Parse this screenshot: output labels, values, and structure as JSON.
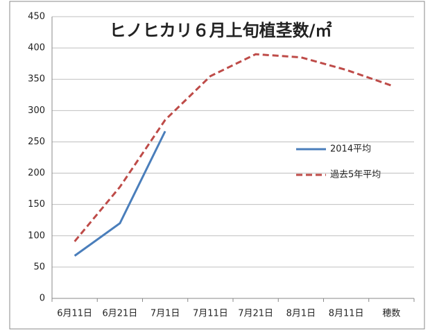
{
  "chart_data": {
    "type": "line",
    "title": "ヒノヒカリ６月上旬植茎数/㎡",
    "categories": [
      "6月11日",
      "6月21日",
      "7月1日",
      "7月11日",
      "7月21日",
      "8月1日",
      "8月11日",
      "穂数"
    ],
    "series": [
      {
        "name": "2014平均",
        "color": "#4a7ebb",
        "dash": false,
        "values": [
          68,
          120,
          267,
          null,
          null,
          null,
          null,
          null
        ]
      },
      {
        "name": "過去5年平均",
        "color": "#be4b48",
        "dash": true,
        "values": [
          91,
          178,
          285,
          355,
          390,
          385,
          365,
          340
        ]
      }
    ],
    "ylim": [
      0,
      450
    ],
    "yticks": [
      0,
      50,
      100,
      150,
      200,
      250,
      300,
      350,
      400,
      450
    ],
    "grid": true
  }
}
